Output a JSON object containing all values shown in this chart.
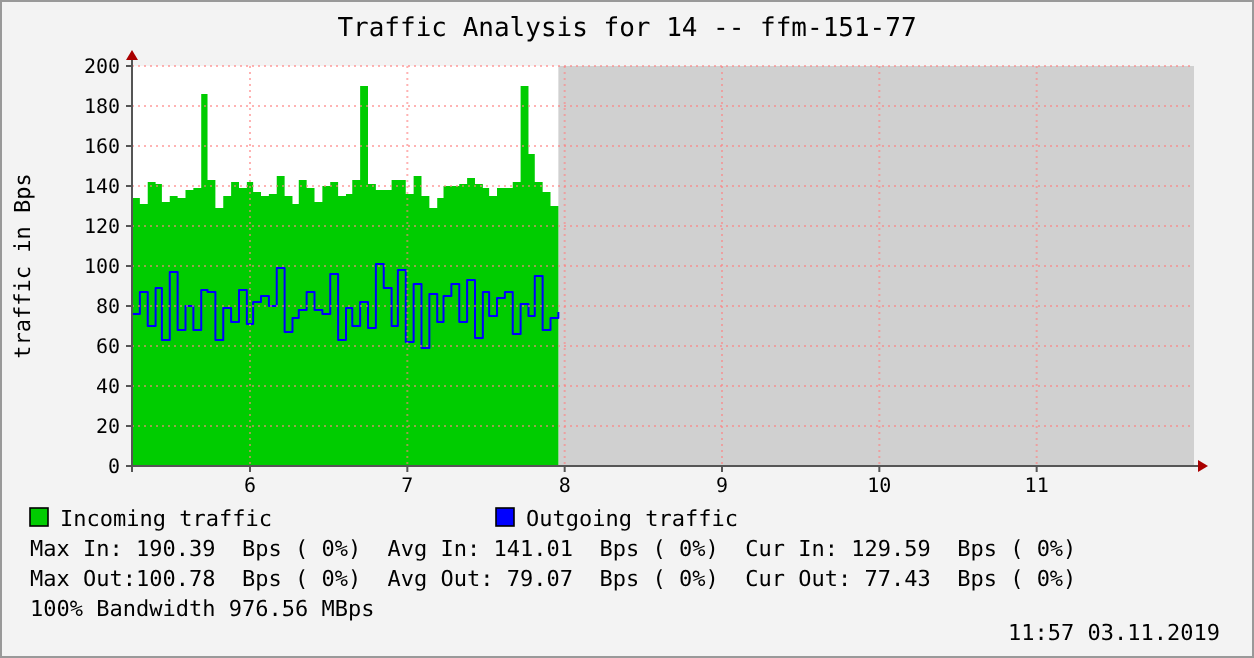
{
  "chart_data": {
    "type": "area",
    "title": "Traffic Analysis for 14 -- ffm-151-77",
    "ylabel": "traffic in Bps",
    "x": [
      5.25,
      5.3,
      5.35,
      5.4,
      5.44,
      5.49,
      5.54,
      5.59,
      5.64,
      5.69,
      5.73,
      5.78,
      5.83,
      5.88,
      5.93,
      5.98,
      6.02,
      6.07,
      6.12,
      6.17,
      6.22,
      6.27,
      6.31,
      6.36,
      6.41,
      6.46,
      6.51,
      6.56,
      6.61,
      6.65,
      6.7,
      6.75,
      6.8,
      6.85,
      6.9,
      6.94,
      6.99,
      7.04,
      7.09,
      7.14,
      7.19,
      7.23,
      7.28,
      7.33,
      7.38,
      7.43,
      7.48,
      7.52,
      7.57,
      7.62,
      7.67,
      7.72,
      7.77,
      7.81,
      7.86,
      7.91,
      7.96
    ],
    "series": [
      {
        "name": "Incoming traffic",
        "color": "#00cc00",
        "values": [
          134,
          131,
          142,
          141,
          132,
          135,
          134,
          138,
          139,
          186,
          143,
          129,
          135,
          142,
          139,
          142,
          137,
          135,
          136,
          145,
          135,
          131,
          143,
          139,
          132,
          140,
          142,
          135,
          136,
          143,
          190,
          141,
          138,
          138,
          143,
          143,
          136,
          145,
          135,
          129,
          134,
          140,
          140,
          141,
          144,
          141,
          139,
          135,
          139,
          139,
          142,
          190,
          156,
          142,
          137,
          130,
          129
        ]
      },
      {
        "name": "Outgoing traffic",
        "type": "step",
        "color": "#0000ff",
        "values": [
          76,
          87,
          70,
          89,
          63,
          97,
          68,
          80,
          68,
          88,
          87,
          63,
          79,
          72,
          88,
          71,
          82,
          85,
          80,
          99,
          67,
          74,
          78,
          87,
          78,
          76,
          96,
          63,
          79,
          70,
          82,
          69,
          101,
          89,
          70,
          98,
          62,
          91,
          59,
          86,
          72,
          85,
          91,
          72,
          93,
          64,
          87,
          75,
          84,
          87,
          66,
          81,
          75,
          95,
          68,
          74,
          77
        ]
      }
    ],
    "xlim": [
      5.25,
      12
    ],
    "xticks": [
      6,
      7,
      8,
      9,
      10,
      11
    ],
    "ylim": [
      0,
      200
    ],
    "yticks": [
      0,
      20,
      40,
      60,
      80,
      100,
      120,
      140,
      160,
      180,
      200
    ],
    "grid": true,
    "legend": "bottom",
    "bands": [
      {
        "axis": "x",
        "from": 7.96,
        "to": 12,
        "color": "#d0d0d0"
      }
    ],
    "annotations": [
      "Max In: 190.39  Bps ( 0%)  Avg In: 141.01  Bps ( 0%)  Cur In: 129.59  Bps ( 0%)",
      "Max Out:100.78  Bps ( 0%)  Avg Out: 79.07  Bps ( 0%)  Cur Out: 77.43  Bps ( 0%)",
      "100% Bandwidth 976.56 MBps",
      "11:57 03.11.2019"
    ]
  }
}
